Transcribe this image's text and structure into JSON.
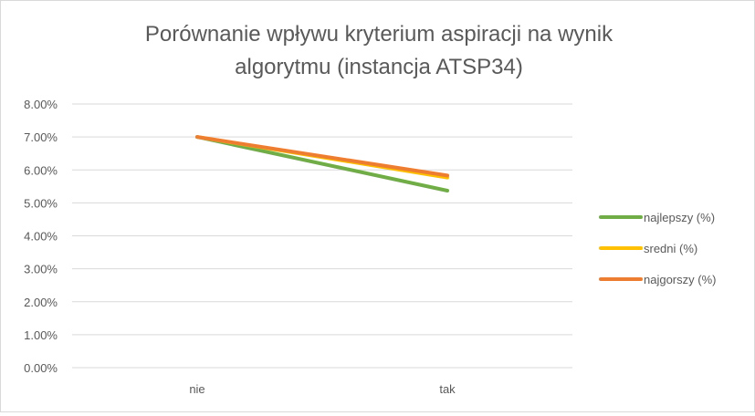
{
  "chart_data": {
    "type": "line",
    "title_lines": [
      "Porównanie wpływu kryterium aspiracji na wynik",
      "algorytmu (instancja ATSP34)"
    ],
    "categories": [
      "nie",
      "tak"
    ],
    "series": [
      {
        "name": "najlepszy (%)",
        "values": [
          0.07,
          0.0537
        ],
        "color": "#70ad47"
      },
      {
        "name": "sredni (%)",
        "values": [
          0.07,
          0.0577
        ],
        "color": "#ffc000"
      },
      {
        "name": "najgorszy (%)",
        "values": [
          0.07,
          0.0583
        ],
        "color": "#ed7d31"
      }
    ],
    "y_ticks": [
      "0.00%",
      "1.00%",
      "2.00%",
      "3.00%",
      "4.00%",
      "5.00%",
      "6.00%",
      "7.00%",
      "8.00%"
    ],
    "ylim": [
      0,
      0.08
    ],
    "y_format": "percent",
    "grid": true,
    "gridline_color": "#d9d9d9",
    "legend_position": "right"
  }
}
